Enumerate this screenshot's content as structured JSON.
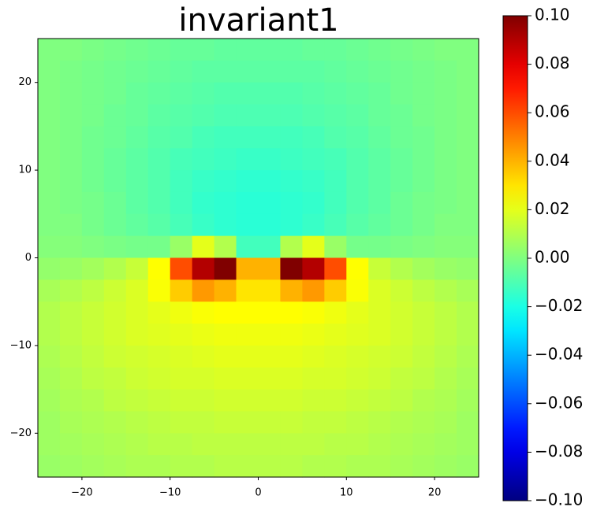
{
  "chart_data": {
    "type": "heatmap",
    "title": "invariant1",
    "colormap": "jet",
    "xlim": [
      -25,
      25
    ],
    "ylim": [
      -25,
      25
    ],
    "xticks": [
      {
        "value": -20,
        "label": "−20"
      },
      {
        "value": -10,
        "label": "−10"
      },
      0,
      10,
      20
    ],
    "yticks": [
      {
        "value": -20,
        "label": "−20"
      },
      {
        "value": -10,
        "label": "−10"
      },
      0,
      10,
      20
    ],
    "x": [
      -23.75,
      -21.25,
      -18.75,
      -16.25,
      -13.75,
      -11.25,
      -8.75,
      -6.25,
      -3.75,
      -1.25,
      1.25,
      3.75,
      6.25,
      8.75,
      11.25,
      13.75,
      16.25,
      18.75,
      21.25,
      23.75
    ],
    "y": [
      23.75,
      21.25,
      18.75,
      16.25,
      13.75,
      11.25,
      8.75,
      6.25,
      3.75,
      1.25,
      -1.25,
      -3.75,
      -6.25,
      -8.75,
      -11.25,
      -13.75,
      -16.25,
      -18.75,
      -21.25,
      -23.75
    ],
    "z": [
      [
        0,
        0,
        -0.001,
        -0.002,
        -0.003,
        -0.004,
        -0.005,
        -0.005,
        -0.006,
        -0.006,
        -0.006,
        -0.006,
        -0.005,
        -0.005,
        -0.004,
        -0.003,
        -0.002,
        -0.001,
        0,
        0
      ],
      [
        0,
        -0.001,
        -0.002,
        -0.003,
        -0.004,
        -0.005,
        -0.006,
        -0.007,
        -0.007,
        -0.007,
        -0.007,
        -0.007,
        -0.007,
        -0.006,
        -0.005,
        -0.004,
        -0.003,
        -0.002,
        -0.001,
        0
      ],
      [
        0,
        -0.001,
        -0.002,
        -0.003,
        -0.005,
        -0.006,
        -0.007,
        -0.008,
        -0.009,
        -0.009,
        -0.009,
        -0.009,
        -0.008,
        -0.007,
        -0.006,
        -0.005,
        -0.003,
        -0.002,
        -0.001,
        0
      ],
      [
        0,
        -0.001,
        -0.002,
        -0.004,
        -0.005,
        -0.007,
        -0.008,
        -0.009,
        -0.01,
        -0.01,
        -0.01,
        -0.01,
        -0.009,
        -0.008,
        -0.007,
        -0.005,
        -0.004,
        -0.002,
        -0.001,
        0
      ],
      [
        0,
        -0.001,
        -0.003,
        -0.004,
        -0.006,
        -0.008,
        -0.009,
        -0.011,
        -0.012,
        -0.012,
        -0.012,
        -0.012,
        -0.011,
        -0.009,
        -0.008,
        -0.006,
        -0.004,
        -0.003,
        -0.001,
        0
      ],
      [
        0,
        -0.001,
        -0.003,
        -0.005,
        -0.007,
        -0.009,
        -0.011,
        -0.012,
        -0.013,
        -0.014,
        -0.014,
        -0.013,
        -0.012,
        -0.011,
        -0.009,
        -0.007,
        -0.005,
        -0.003,
        -0.001,
        0
      ],
      [
        0,
        -0.001,
        -0.003,
        -0.005,
        -0.007,
        -0.009,
        -0.012,
        -0.014,
        -0.015,
        -0.016,
        -0.016,
        -0.015,
        -0.014,
        -0.012,
        -0.009,
        -0.007,
        -0.005,
        -0.003,
        -0.001,
        0
      ],
      [
        0,
        -0.001,
        -0.002,
        -0.004,
        -0.007,
        -0.009,
        -0.012,
        -0.015,
        -0.016,
        -0.017,
        -0.017,
        -0.016,
        -0.015,
        -0.012,
        -0.009,
        -0.007,
        -0.004,
        -0.002,
        -0.001,
        0
      ],
      [
        0,
        0,
        -0.002,
        -0.004,
        -0.006,
        -0.008,
        -0.011,
        -0.014,
        -0.016,
        -0.017,
        -0.017,
        -0.016,
        -0.014,
        -0.011,
        -0.008,
        -0.006,
        -0.004,
        -0.002,
        0,
        0
      ],
      [
        0.001,
        0.001,
        0,
        -0.001,
        -0.002,
        -0.002,
        0.005,
        0.02,
        0.01,
        -0.012,
        -0.012,
        0.01,
        0.02,
        0.005,
        -0.002,
        -0.002,
        -0.001,
        0,
        0.001,
        0.001
      ],
      [
        0.004,
        0.005,
        0.007,
        0.01,
        0.014,
        0.025,
        0.06,
        0.09,
        0.1,
        0.04,
        0.04,
        0.1,
        0.09,
        0.06,
        0.025,
        0.014,
        0.01,
        0.007,
        0.005,
        0.004
      ],
      [
        0.008,
        0.01,
        0.012,
        0.015,
        0.018,
        0.024,
        0.035,
        0.045,
        0.04,
        0.03,
        0.03,
        0.04,
        0.045,
        0.035,
        0.024,
        0.018,
        0.015,
        0.012,
        0.01,
        0.008
      ],
      [
        0.01,
        0.012,
        0.014,
        0.016,
        0.018,
        0.02,
        0.022,
        0.024,
        0.025,
        0.025,
        0.025,
        0.025,
        0.024,
        0.022,
        0.02,
        0.018,
        0.016,
        0.014,
        0.012,
        0.01
      ],
      [
        0.01,
        0.012,
        0.014,
        0.016,
        0.018,
        0.019,
        0.02,
        0.021,
        0.022,
        0.022,
        0.022,
        0.022,
        0.021,
        0.02,
        0.019,
        0.018,
        0.016,
        0.014,
        0.012,
        0.01
      ],
      [
        0.009,
        0.011,
        0.013,
        0.015,
        0.016,
        0.017,
        0.018,
        0.019,
        0.02,
        0.02,
        0.02,
        0.02,
        0.019,
        0.018,
        0.017,
        0.016,
        0.015,
        0.013,
        0.011,
        0.009
      ],
      [
        0.008,
        0.01,
        0.012,
        0.013,
        0.015,
        0.016,
        0.017,
        0.017,
        0.018,
        0.018,
        0.018,
        0.018,
        0.017,
        0.017,
        0.016,
        0.015,
        0.013,
        0.012,
        0.01,
        0.008
      ],
      [
        0.007,
        0.009,
        0.01,
        0.012,
        0.013,
        0.014,
        0.015,
        0.015,
        0.016,
        0.016,
        0.016,
        0.016,
        0.015,
        0.015,
        0.014,
        0.013,
        0.012,
        0.01,
        0.009,
        0.007
      ],
      [
        0.006,
        0.008,
        0.009,
        0.01,
        0.011,
        0.012,
        0.013,
        0.013,
        0.014,
        0.014,
        0.014,
        0.014,
        0.013,
        0.013,
        0.012,
        0.011,
        0.01,
        0.009,
        0.008,
        0.006
      ],
      [
        0.006,
        0.007,
        0.008,
        0.009,
        0.01,
        0.011,
        0.011,
        0.012,
        0.012,
        0.012,
        0.012,
        0.012,
        0.012,
        0.011,
        0.011,
        0.01,
        0.009,
        0.008,
        0.007,
        0.006
      ],
      [
        0.005,
        0.006,
        0.007,
        0.008,
        0.009,
        0.009,
        0.01,
        0.01,
        0.011,
        0.011,
        0.011,
        0.011,
        0.01,
        0.01,
        0.009,
        0.009,
        0.008,
        0.007,
        0.006,
        0.005
      ]
    ],
    "clim": [
      -0.1,
      0.1
    ],
    "cticks": [
      {
        "value": -0.1,
        "label": "−0.10"
      },
      {
        "value": -0.08,
        "label": "−0.08"
      },
      {
        "value": -0.06,
        "label": "−0.06"
      },
      {
        "value": -0.04,
        "label": "−0.04"
      },
      {
        "value": -0.02,
        "label": "−0.02"
      },
      {
        "value": 0,
        "label": "0.00"
      },
      {
        "value": 0.02,
        "label": "0.02"
      },
      {
        "value": 0.04,
        "label": "0.04"
      },
      {
        "value": 0.06,
        "label": "0.06"
      },
      {
        "value": 0.08,
        "label": "0.08"
      },
      {
        "value": 0.1,
        "label": "0.10"
      }
    ]
  }
}
